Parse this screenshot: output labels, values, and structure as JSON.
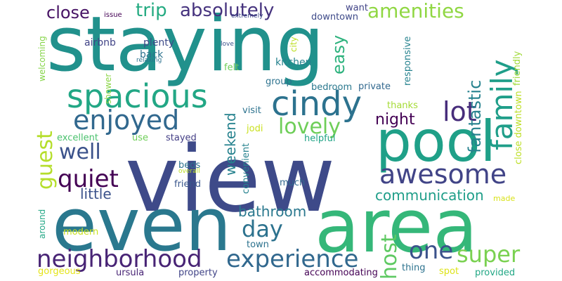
{
  "background": "#ffffff",
  "words": [
    {
      "text": "view",
      "color": "#3e4a89"
    },
    {
      "text": "staying",
      "color": "#21918c"
    },
    {
      "text": "even",
      "color": "#2a788e"
    },
    {
      "text": "area",
      "color": "#35b779"
    },
    {
      "text": "pool",
      "color": "#1fa088"
    },
    {
      "text": "family",
      "color": "#1f9e89"
    },
    {
      "text": "spacious",
      "color": "#22a785"
    },
    {
      "text": "cindy",
      "color": "#2c728e"
    },
    {
      "text": "enjoyed",
      "color": "#31688e"
    },
    {
      "text": "awesome",
      "color": "#414487"
    },
    {
      "text": "neighborhood",
      "color": "#482475"
    },
    {
      "text": "experience",
      "color": "#31688e"
    },
    {
      "text": "quiet",
      "color": "#440154"
    },
    {
      "text": "lovely",
      "color": "#6ece58"
    },
    {
      "text": "guest",
      "color": "#b5de2b"
    },
    {
      "text": "lot",
      "color": "#472d7b"
    },
    {
      "text": "well",
      "color": "#3b528b"
    },
    {
      "text": "amenities",
      "color": "#90d743"
    },
    {
      "text": "absolutely",
      "color": "#46337e"
    },
    {
      "text": "trip",
      "color": "#25ab82"
    },
    {
      "text": "close",
      "color": "#471365"
    },
    {
      "text": "host",
      "color": "#5ec962"
    },
    {
      "text": "super",
      "color": "#7ad151"
    },
    {
      "text": "one",
      "color": "#3b528b"
    },
    {
      "text": "day",
      "color": "#2c728e"
    },
    {
      "text": "fantastic",
      "color": "#26828e"
    },
    {
      "text": "easy",
      "color": "#2db27d"
    },
    {
      "text": "night",
      "color": "#440154"
    },
    {
      "text": "weekend",
      "color": "#26828e"
    },
    {
      "text": "bathroom",
      "color": "#2a788e"
    },
    {
      "text": "communication",
      "color": "#1f9e89"
    },
    {
      "text": "little",
      "color": "#3b528b"
    },
    {
      "text": "airbnb",
      "color": "#414487"
    },
    {
      "text": "plenty",
      "color": "#3e4a89"
    },
    {
      "text": "back",
      "color": "#2c728e"
    },
    {
      "text": "kitchen",
      "color": "#26828e"
    },
    {
      "text": "group",
      "color": "#2c728e"
    },
    {
      "text": "bedroom",
      "color": "#2a788e"
    },
    {
      "text": "private",
      "color": "#31688e"
    },
    {
      "text": "thanks",
      "color": "#a5db36"
    },
    {
      "text": "felt",
      "color": "#6ece58"
    },
    {
      "text": "visit",
      "color": "#2c728e"
    },
    {
      "text": "jodi",
      "color": "#cae11f"
    },
    {
      "text": "helpful",
      "color": "#20a386"
    },
    {
      "text": "excellent",
      "color": "#4ac16d"
    },
    {
      "text": "use",
      "color": "#6ece58"
    },
    {
      "text": "stayed",
      "color": "#433e85"
    },
    {
      "text": "beds",
      "color": "#2c728e"
    },
    {
      "text": "overall",
      "color": "#bddf26"
    },
    {
      "text": "friend",
      "color": "#39568c"
    },
    {
      "text": "much",
      "color": "#31688e"
    },
    {
      "text": "made",
      "color": "#d8e219"
    },
    {
      "text": "modern",
      "color": "#cae11f"
    },
    {
      "text": "town",
      "color": "#2c728e"
    },
    {
      "text": "gorgeous",
      "color": "#e5e419"
    },
    {
      "text": "ursula",
      "color": "#482475"
    },
    {
      "text": "property",
      "color": "#414487"
    },
    {
      "text": "accommodating",
      "color": "#440154"
    },
    {
      "text": "thing",
      "color": "#2c728e"
    },
    {
      "text": "spot",
      "color": "#dde318"
    },
    {
      "text": "provided",
      "color": "#22a785"
    },
    {
      "text": "downtown",
      "color": "#3e4a89"
    },
    {
      "text": "want",
      "color": "#414487"
    },
    {
      "text": "issue",
      "color": "#440154"
    },
    {
      "text": "extremely",
      "color": "#3e4a89"
    },
    {
      "text": "love",
      "color": "#3b528b"
    },
    {
      "text": "relaxing",
      "color": "#2c728e"
    },
    {
      "text": "responsive",
      "color": "#26828e"
    },
    {
      "text": "friendly",
      "color": "#a0da39"
    },
    {
      "text": "close downtown",
      "color": "#bddf26"
    },
    {
      "text": "convenient",
      "color": "#26828e"
    },
    {
      "text": "city",
      "color": "#bddf26"
    },
    {
      "text": "shower",
      "color": "#8bd646"
    },
    {
      "text": "welcoming",
      "color": "#86d549"
    },
    {
      "text": "around",
      "color": "#22a785"
    }
  ]
}
